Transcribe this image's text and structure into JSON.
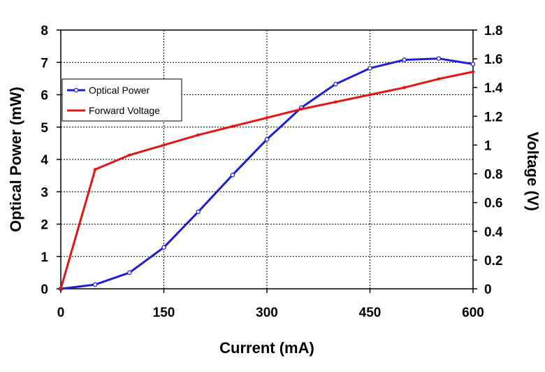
{
  "chart_data": {
    "type": "line",
    "xlabel": "Current (mA)",
    "ylabel": "Optical Power (mW)",
    "y2label": "Voltage (V)",
    "xlim": [
      0,
      600
    ],
    "ylim": [
      0,
      8
    ],
    "y2lim": [
      0,
      1.8
    ],
    "x_ticks": [
      "0",
      "150",
      "300",
      "450",
      "600"
    ],
    "y_ticks": [
      "0",
      "1",
      "2",
      "3",
      "4",
      "5",
      "6",
      "7",
      "8"
    ],
    "y2_ticks": [
      "0",
      "0.2",
      "0.4",
      "0.6",
      "0.8",
      "1",
      "1.2",
      "1.4",
      "1.6",
      "1.8"
    ],
    "grid": true,
    "legend_position": "upper-left",
    "series": [
      {
        "name": "Optical Power",
        "axis": "left",
        "color": "#1f1fd1",
        "x": [
          0,
          50,
          100,
          150,
          200,
          250,
          300,
          350,
          400,
          450,
          500,
          550,
          600
        ],
        "y": [
          0,
          0.13,
          0.5,
          1.28,
          2.38,
          3.52,
          4.62,
          5.6,
          6.33,
          6.82,
          7.08,
          7.12,
          6.95
        ]
      },
      {
        "name": "Forward Voltage",
        "axis": "right",
        "color": "#e31515",
        "x": [
          0,
          50,
          100,
          150,
          200,
          250,
          300,
          350,
          400,
          450,
          500,
          550,
          600
        ],
        "y": [
          0,
          0.83,
          0.93,
          1.0,
          1.07,
          1.13,
          1.19,
          1.25,
          1.3,
          1.35,
          1.4,
          1.46,
          1.51
        ]
      }
    ]
  }
}
